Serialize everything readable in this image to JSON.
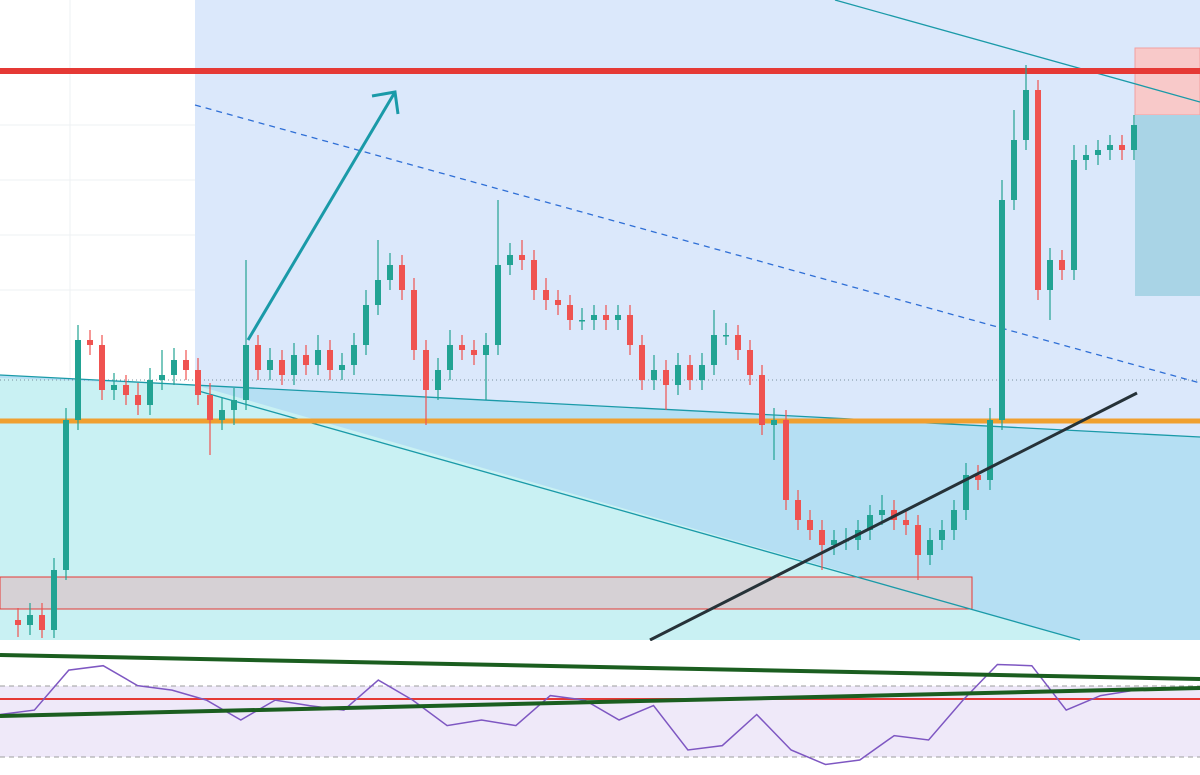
{
  "chart_data": [
    {
      "type": "candlestick",
      "ylim": [
        0,
        640
      ],
      "up_color": "#22a393",
      "down_color": "#ef5350",
      "open": [
        20,
        15,
        25,
        10,
        70,
        220,
        300,
        295,
        250,
        255,
        245,
        235,
        260,
        265,
        280,
        270,
        245,
        220,
        230,
        240,
        295,
        270,
        280,
        265,
        285,
        275,
        290,
        270,
        275,
        295,
        335,
        360,
        375,
        350,
        290,
        250,
        270,
        295,
        290,
        285,
        295,
        375,
        385,
        380,
        350,
        340,
        335,
        320,
        320,
        325,
        320,
        325,
        295,
        260,
        270,
        255,
        275,
        260,
        275,
        305,
        305,
        290,
        265,
        215,
        220,
        140,
        120,
        110,
        95,
        100,
        100,
        110,
        125,
        130,
        120,
        115,
        85,
        100,
        110,
        130,
        165,
        160,
        220,
        440,
        500,
        550,
        350,
        380,
        370,
        480,
        485,
        490,
        495,
        490
      ],
      "high": [
        32,
        37,
        37,
        82,
        232,
        315,
        310,
        305,
        267,
        265,
        257,
        272,
        290,
        292,
        290,
        282,
        257,
        242,
        252,
        380,
        305,
        292,
        290,
        297,
        295,
        305,
        300,
        287,
        307,
        350,
        400,
        387,
        385,
        362,
        300,
        282,
        310,
        305,
        300,
        307,
        440,
        397,
        400,
        390,
        362,
        350,
        345,
        332,
        335,
        335,
        335,
        335,
        305,
        285,
        280,
        287,
        285,
        287,
        330,
        317,
        315,
        300,
        275,
        232,
        230,
        150,
        130,
        120,
        110,
        112,
        120,
        135,
        145,
        140,
        130,
        125,
        112,
        120,
        140,
        177,
        175,
        232,
        460,
        530,
        575,
        560,
        392,
        390,
        495,
        495,
        500,
        505,
        505,
        525
      ],
      "low": [
        3,
        5,
        2,
        2,
        60,
        210,
        285,
        240,
        240,
        235,
        225,
        225,
        250,
        255,
        260,
        235,
        185,
        210,
        215,
        230,
        260,
        260,
        255,
        255,
        265,
        265,
        260,
        260,
        265,
        285,
        325,
        350,
        340,
        280,
        215,
        240,
        260,
        280,
        275,
        240,
        285,
        365,
        370,
        340,
        330,
        325,
        310,
        310,
        310,
        310,
        310,
        285,
        250,
        250,
        230,
        245,
        250,
        250,
        265,
        295,
        280,
        255,
        205,
        180,
        130,
        110,
        100,
        70,
        85,
        90,
        90,
        100,
        115,
        110,
        105,
        60,
        75,
        90,
        100,
        120,
        150,
        150,
        210,
        430,
        490,
        340,
        320,
        360,
        360,
        470,
        475,
        480,
        480,
        480
      ],
      "close": [
        15,
        25,
        10,
        70,
        220,
        300,
        295,
        250,
        255,
        245,
        235,
        260,
        265,
        280,
        270,
        245,
        220,
        230,
        240,
        295,
        270,
        280,
        265,
        285,
        275,
        290,
        270,
        275,
        295,
        335,
        360,
        375,
        350,
        290,
        250,
        270,
        295,
        290,
        285,
        295,
        375,
        385,
        380,
        350,
        340,
        335,
        320,
        320,
        325,
        320,
        325,
        295,
        260,
        270,
        255,
        275,
        260,
        275,
        305,
        305,
        290,
        265,
        215,
        220,
        140,
        120,
        110,
        95,
        100,
        100,
        110,
        125,
        130,
        120,
        115,
        85,
        100,
        110,
        130,
        165,
        160,
        220,
        440,
        500,
        550,
        350,
        380,
        370,
        480,
        485,
        490,
        495,
        490,
        515
      ]
    },
    {
      "type": "line",
      "ylim": [
        0,
        100
      ],
      "color": "#7e57c2",
      "values": [
        50,
        54,
        90,
        94,
        76,
        72,
        63,
        45,
        63,
        58,
        54,
        81,
        63,
        40,
        45,
        40,
        67,
        63,
        45,
        58,
        18,
        22,
        50,
        18,
        5,
        9,
        31,
        27,
        63,
        95,
        94,
        54,
        67,
        72
      ]
    }
  ]
}
